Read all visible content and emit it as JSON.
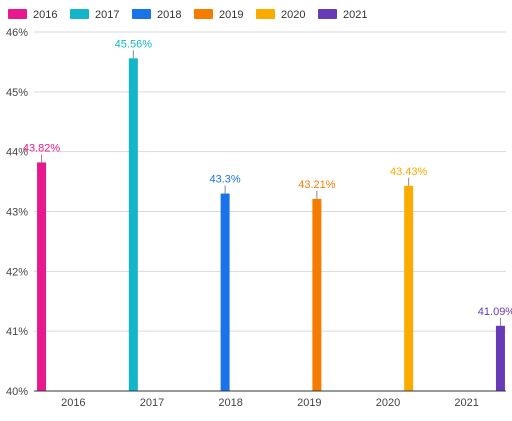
{
  "chart_data": {
    "type": "bar",
    "title": "",
    "xlabel": "",
    "ylabel": "",
    "categories": [
      "2016",
      "2017",
      "2018",
      "2019",
      "2020",
      "2021"
    ],
    "ylim": [
      40,
      46
    ],
    "yticks": [
      "40%",
      "41%",
      "42%",
      "43%",
      "44%",
      "45%",
      "46%"
    ],
    "grid": true,
    "legend_position": "top-left",
    "series": [
      {
        "name": "2016",
        "color": "#e8198f",
        "values": [
          43.82,
          null,
          null,
          null,
          null,
          null
        ],
        "labels": [
          "43.82%",
          "",
          "",
          "",
          "",
          ""
        ]
      },
      {
        "name": "2017",
        "color": "#12b5c9",
        "values": [
          null,
          45.56,
          null,
          null,
          null,
          null
        ],
        "labels": [
          "",
          "45.56%",
          "",
          "",
          "",
          ""
        ]
      },
      {
        "name": "2018",
        "color": "#1a73e8",
        "values": [
          null,
          null,
          43.3,
          null,
          null,
          null
        ],
        "labels": [
          "",
          "",
          "43.3%",
          "",
          "",
          ""
        ]
      },
      {
        "name": "2019",
        "color": "#f57c00",
        "values": [
          null,
          null,
          null,
          43.21,
          null,
          null
        ],
        "labels": [
          "",
          "",
          "",
          "43.21%",
          "",
          ""
        ]
      },
      {
        "name": "2020",
        "color": "#f9ab00",
        "values": [
          null,
          null,
          null,
          null,
          43.43,
          null
        ],
        "labels": [
          "",
          "",
          "",
          "",
          "43.43%",
          ""
        ]
      },
      {
        "name": "2021",
        "color": "#673ab7",
        "values": [
          null,
          null,
          null,
          null,
          null,
          41.09
        ],
        "labels": [
          "",
          "",
          "",
          "",
          "",
          "41.09%"
        ]
      }
    ]
  }
}
